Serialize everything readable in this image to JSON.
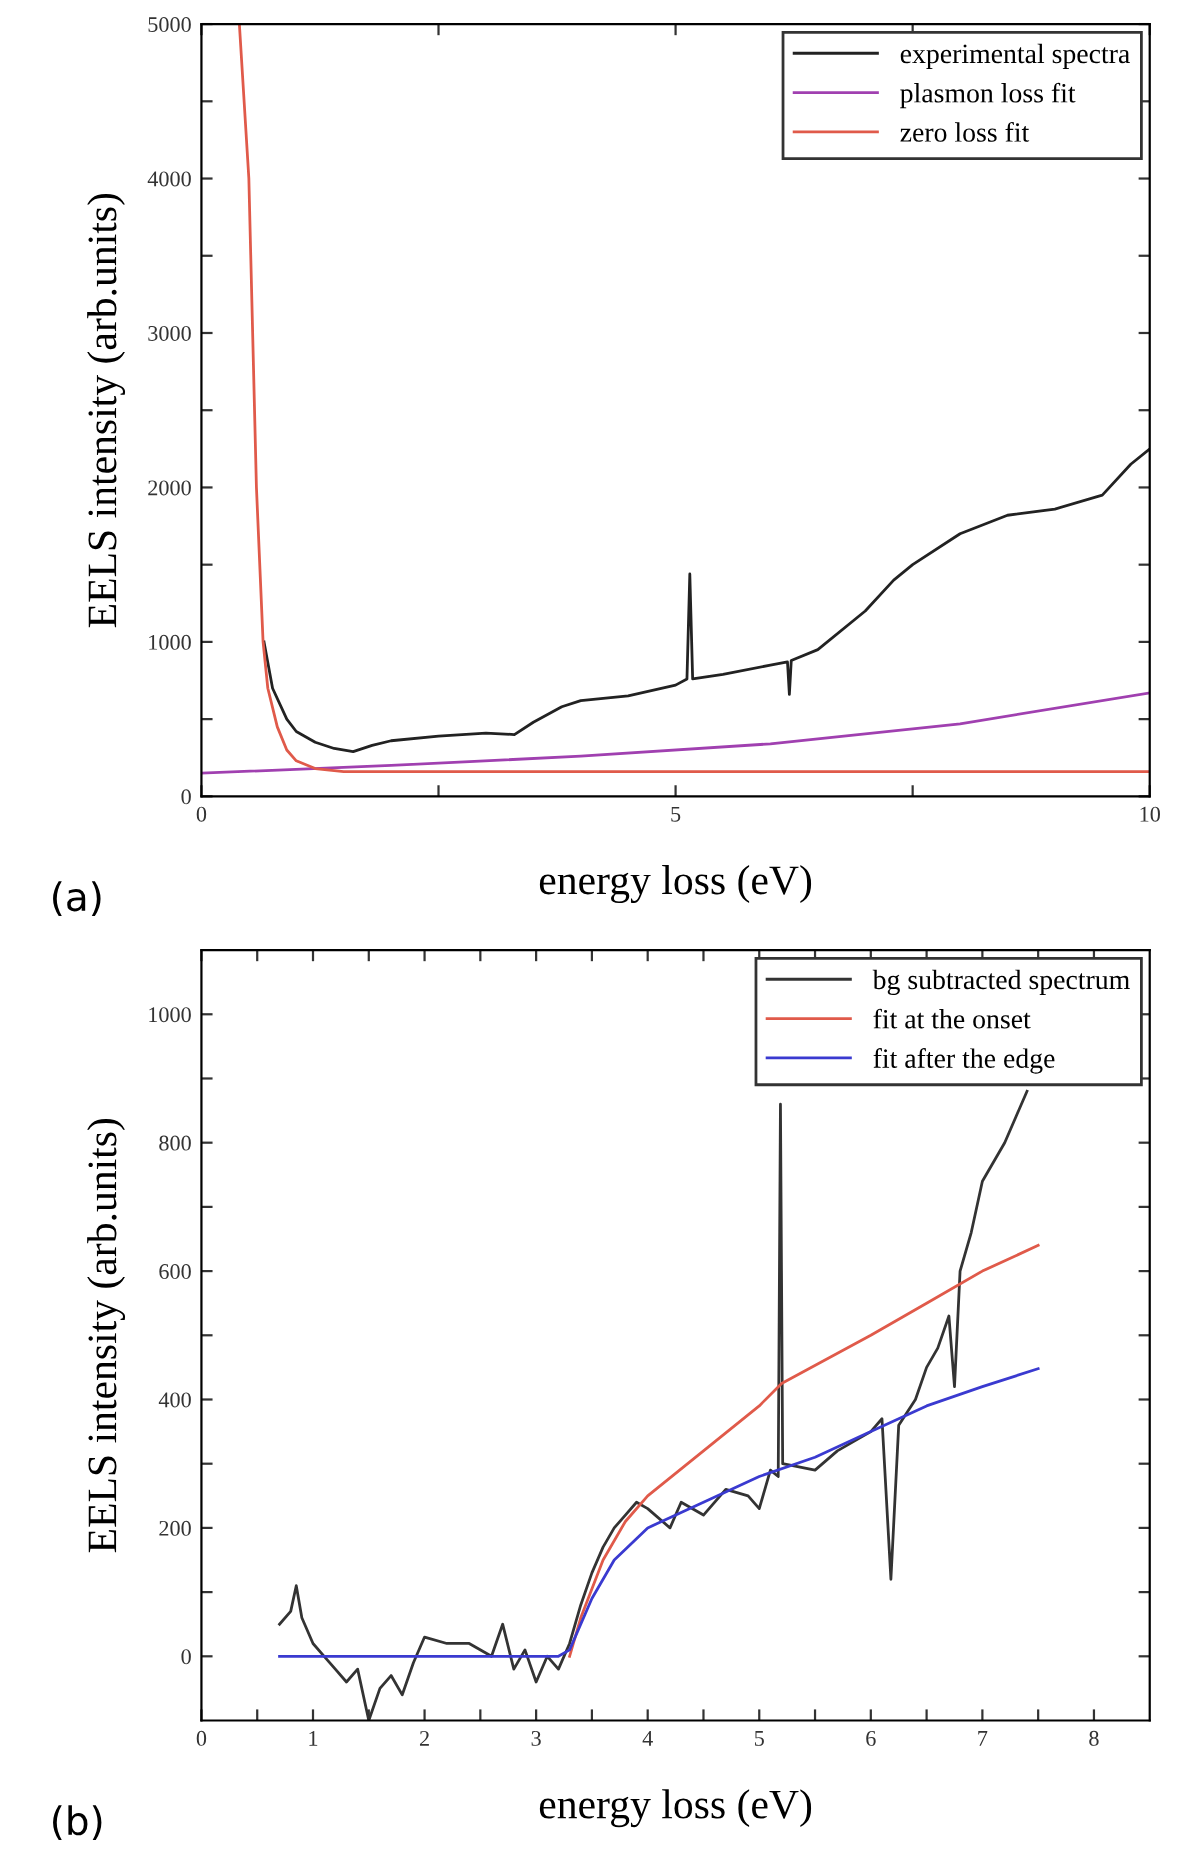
{
  "chart_data": [
    {
      "type": "line",
      "xlabel": "energy loss (eV)",
      "ylabel": "EELS intensity (arb.units)",
      "annotations": [
        "(a)"
      ],
      "xlim": [
        0,
        10
      ],
      "ylim": [
        0,
        5000
      ],
      "xticks": [
        0,
        {
          "value": 2.5,
          "label": null
        },
        5,
        {
          "value": 7.5,
          "label": null
        },
        10
      ],
      "yticks": [
        0,
        {
          "value": 500,
          "label": null
        },
        1000,
        {
          "value": 1500,
          "label": null
        },
        2000,
        {
          "value": 2500,
          "label": null
        },
        3000,
        {
          "value": 3500,
          "label": null
        },
        4000,
        {
          "value": 4500,
          "label": null
        },
        5000
      ],
      "legend": "top right",
      "grid": false,
      "line_style": "solid",
      "marker": "none",
      "series": [
        {
          "name": "experimental spectra",
          "color": "#222222",
          "x": [
            0.66,
            0.75,
            0.9,
            1.0,
            1.2,
            1.4,
            1.6,
            1.8,
            2.0,
            2.5,
            3.0,
            3.3,
            3.5,
            3.8,
            4.0,
            4.5,
            5.0,
            5.12,
            5.15,
            5.18,
            5.5,
            6.0,
            6.18,
            6.2,
            6.22,
            6.5,
            7.0,
            7.3,
            7.5,
            8.0,
            8.5,
            9.0,
            9.5,
            9.8,
            10.0
          ],
          "values": [
            1000,
            700,
            500,
            420,
            350,
            310,
            290,
            330,
            360,
            390,
            410,
            400,
            480,
            580,
            620,
            650,
            720,
            760,
            1440,
            760,
            790,
            850,
            870,
            660,
            880,
            950,
            1200,
            1400,
            1500,
            1700,
            1820,
            1860,
            1950,
            2150,
            2250
          ]
        },
        {
          "name": "plasmon loss fit",
          "color": "#a040b0",
          "x": [
            0,
            2,
            4,
            6,
            8,
            10
          ],
          "values": [
            150,
            200,
            260,
            340,
            470,
            670
          ]
        },
        {
          "name": "zero loss fit",
          "color": "#e05a4a",
          "x": [
            0.4,
            0.5,
            0.58,
            0.65,
            0.7,
            0.8,
            0.9,
            1.0,
            1.2,
            1.5,
            2.0,
            10.0
          ],
          "values": [
            5000,
            4000,
            2000,
            1000,
            700,
            450,
            300,
            230,
            180,
            160,
            160,
            160
          ]
        }
      ]
    },
    {
      "type": "line",
      "xlabel": "energy loss (eV)",
      "ylabel": "EELS intensity (arb.units)",
      "annotations": [
        "(b)"
      ],
      "xlim": [
        0,
        8.5
      ],
      "ylim": [
        -100,
        1100
      ],
      "xticks": [
        0,
        {
          "value": 0.5,
          "label": null
        },
        1,
        {
          "value": 1.5,
          "label": null
        },
        2,
        {
          "value": 2.5,
          "label": null
        },
        3,
        {
          "value": 3.5,
          "label": null
        },
        4,
        {
          "value": 4.5,
          "label": null
        },
        5,
        {
          "value": 5.5,
          "label": null
        },
        6,
        {
          "value": 6.5,
          "label": null
        },
        7,
        {
          "value": 7.5,
          "label": null
        },
        8
      ],
      "yticks": [
        0,
        {
          "value": 100,
          "label": null
        },
        200,
        {
          "value": 300,
          "label": null
        },
        400,
        {
          "value": 500,
          "label": null
        },
        600,
        {
          "value": 700,
          "label": null
        },
        800,
        {
          "value": 900,
          "label": null
        },
        1000
      ],
      "legend": "top right",
      "grid": false,
      "line_style": "solid",
      "marker": "none",
      "series": [
        {
          "name": "bg subtracted spectrum",
          "color": "#333333",
          "x": [
            0.7,
            0.8,
            0.85,
            0.9,
            1.0,
            1.1,
            1.2,
            1.3,
            1.4,
            1.5,
            1.6,
            1.7,
            1.8,
            1.9,
            2.0,
            2.2,
            2.4,
            2.6,
            2.7,
            2.8,
            2.9,
            3.0,
            3.1,
            3.2,
            3.3,
            3.4,
            3.5,
            3.6,
            3.7,
            3.8,
            3.9,
            4.0,
            4.2,
            4.3,
            4.5,
            4.7,
            4.9,
            5.0,
            5.1,
            5.17,
            5.19,
            5.21,
            5.5,
            5.7,
            6.0,
            6.1,
            6.18,
            6.25,
            6.4,
            6.5,
            6.6,
            6.7,
            6.75,
            6.8,
            6.9,
            7.0,
            7.2,
            7.3,
            7.4
          ],
          "values": [
            50,
            70,
            110,
            60,
            20,
            0,
            -20,
            -40,
            -20,
            -100,
            -50,
            -30,
            -60,
            -10,
            30,
            20,
            20,
            0,
            50,
            -20,
            10,
            -40,
            0,
            -20,
            20,
            80,
            130,
            170,
            200,
            220,
            240,
            230,
            200,
            240,
            220,
            260,
            250,
            230,
            290,
            280,
            860,
            300,
            290,
            320,
            350,
            370,
            120,
            360,
            400,
            450,
            480,
            530,
            420,
            600,
            660,
            740,
            800,
            840,
            880
          ]
        },
        {
          "name": "fit at the onset",
          "color": "#e05a4a",
          "x": [
            3.3,
            3.4,
            3.6,
            3.8,
            4.0,
            4.5,
            5.0,
            5.2,
            6.0,
            6.5,
            7.0,
            7.5
          ],
          "values": [
            0,
            60,
            150,
            210,
            250,
            320,
            390,
            425,
            500,
            550,
            600,
            640
          ]
        },
        {
          "name": "fit after the edge",
          "color": "#3a3ad0",
          "x": [
            0.7,
            3.2,
            3.3,
            3.5,
            3.7,
            4.0,
            4.5,
            5.0,
            5.5,
            6.0,
            6.5,
            7.0,
            7.5
          ],
          "values": [
            0,
            0,
            10,
            90,
            150,
            200,
            240,
            280,
            310,
            350,
            390,
            420,
            448
          ]
        }
      ]
    }
  ]
}
